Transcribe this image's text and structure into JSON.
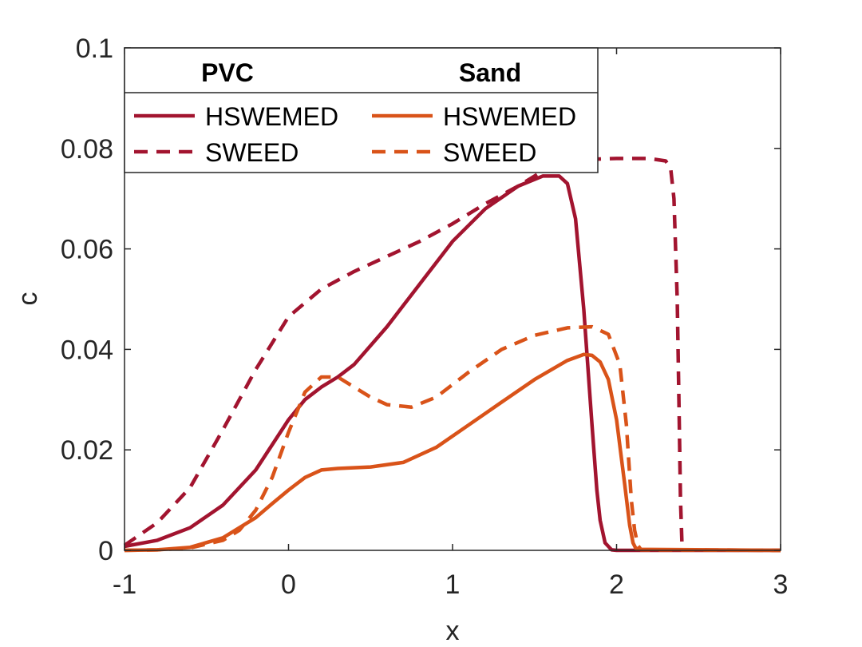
{
  "chart_data": {
    "type": "line",
    "title": "",
    "xlabel": "x",
    "ylabel": "c",
    "xlim": [
      -1,
      3
    ],
    "ylim": [
      0,
      0.1
    ],
    "xticks": [
      -1,
      0,
      1,
      2,
      3
    ],
    "xtick_labels": [
      "-1",
      "0",
      "1",
      "2",
      "3"
    ],
    "yticks": [
      0,
      0.02,
      0.04,
      0.06,
      0.08,
      0.1
    ],
    "ytick_labels": [
      "0",
      "0.02",
      "0.04",
      "0.06",
      "0.08",
      "0.1"
    ],
    "grid": false,
    "legend": {
      "placement": "top-left",
      "headers": [
        "PVC",
        "Sand"
      ],
      "labels": [
        "HSWEMED",
        "SWEED",
        "HSWEMED",
        "SWEED"
      ]
    },
    "series": [
      {
        "name": "PVC HSWEMED",
        "group": "PVC",
        "label": "HSWEMED",
        "color": "#A2142F",
        "style": "solid",
        "x": [
          -1,
          -0.8,
          -0.6,
          -0.4,
          -0.2,
          0,
          0.1,
          0.2,
          0.3,
          0.4,
          0.6,
          0.8,
          1.0,
          1.2,
          1.4,
          1.55,
          1.65,
          1.7,
          1.75,
          1.8,
          1.85,
          1.88,
          1.9,
          1.93,
          1.97,
          2.0,
          3.0
        ],
        "y": [
          0.0008,
          0.002,
          0.0045,
          0.009,
          0.016,
          0.026,
          0.03,
          0.0325,
          0.0345,
          0.037,
          0.0445,
          0.053,
          0.0615,
          0.068,
          0.0725,
          0.0745,
          0.0745,
          0.073,
          0.066,
          0.048,
          0.025,
          0.012,
          0.006,
          0.0015,
          0.0001,
          0,
          0
        ]
      },
      {
        "name": "PVC SWEED",
        "group": "PVC",
        "label": "SWEED",
        "color": "#A2142F",
        "style": "dashed",
        "x": [
          -1,
          -0.8,
          -0.6,
          -0.4,
          -0.2,
          0,
          0.2,
          0.4,
          0.6,
          0.8,
          1.0,
          1.2,
          1.4,
          1.6,
          1.8,
          2.0,
          2.2,
          2.3,
          2.33,
          2.35,
          2.37,
          2.38,
          2.39,
          2.4,
          3.0
        ],
        "y": [
          0.001,
          0.0055,
          0.0125,
          0.024,
          0.036,
          0.0465,
          0.052,
          0.0555,
          0.0585,
          0.0615,
          0.065,
          0.069,
          0.0725,
          0.0765,
          0.0778,
          0.078,
          0.078,
          0.0775,
          0.076,
          0.07,
          0.05,
          0.03,
          0.01,
          0.0001,
          0
        ]
      },
      {
        "name": "Sand HSWEMED",
        "group": "Sand",
        "label": "HSWEMED",
        "color": "#D95319",
        "style": "solid",
        "x": [
          -1,
          -0.8,
          -0.6,
          -0.4,
          -0.2,
          -0.1,
          0,
          0.1,
          0.2,
          0.3,
          0.5,
          0.7,
          0.9,
          1.1,
          1.3,
          1.5,
          1.7,
          1.8,
          1.85,
          1.9,
          1.95,
          2.0,
          2.05,
          2.08,
          2.1,
          2.12,
          3.0
        ],
        "y": [
          0,
          0.0001,
          0.0006,
          0.0025,
          0.0065,
          0.0093,
          0.012,
          0.0145,
          0.016,
          0.0163,
          0.0166,
          0.0175,
          0.0205,
          0.025,
          0.0295,
          0.034,
          0.0378,
          0.039,
          0.0388,
          0.0375,
          0.034,
          0.026,
          0.013,
          0.005,
          0.0015,
          0.0002,
          0
        ]
      },
      {
        "name": "Sand SWEED",
        "group": "Sand",
        "label": "SWEED",
        "color": "#D95319",
        "style": "dashed",
        "x": [
          -1,
          -0.8,
          -0.6,
          -0.4,
          -0.3,
          -0.2,
          -0.1,
          0,
          0.1,
          0.2,
          0.3,
          0.4,
          0.5,
          0.6,
          0.75,
          0.9,
          1.1,
          1.3,
          1.5,
          1.7,
          1.85,
          1.95,
          2.02,
          2.06,
          2.09,
          2.11,
          2.13,
          2.15,
          3.0
        ],
        "y": [
          0,
          0.0001,
          0.0005,
          0.002,
          0.004,
          0.008,
          0.0145,
          0.0235,
          0.0315,
          0.0345,
          0.0345,
          0.0325,
          0.0305,
          0.029,
          0.0285,
          0.0305,
          0.0355,
          0.04,
          0.0428,
          0.0443,
          0.0445,
          0.043,
          0.037,
          0.025,
          0.01,
          0.004,
          0.001,
          0.0001,
          0
        ]
      }
    ]
  }
}
